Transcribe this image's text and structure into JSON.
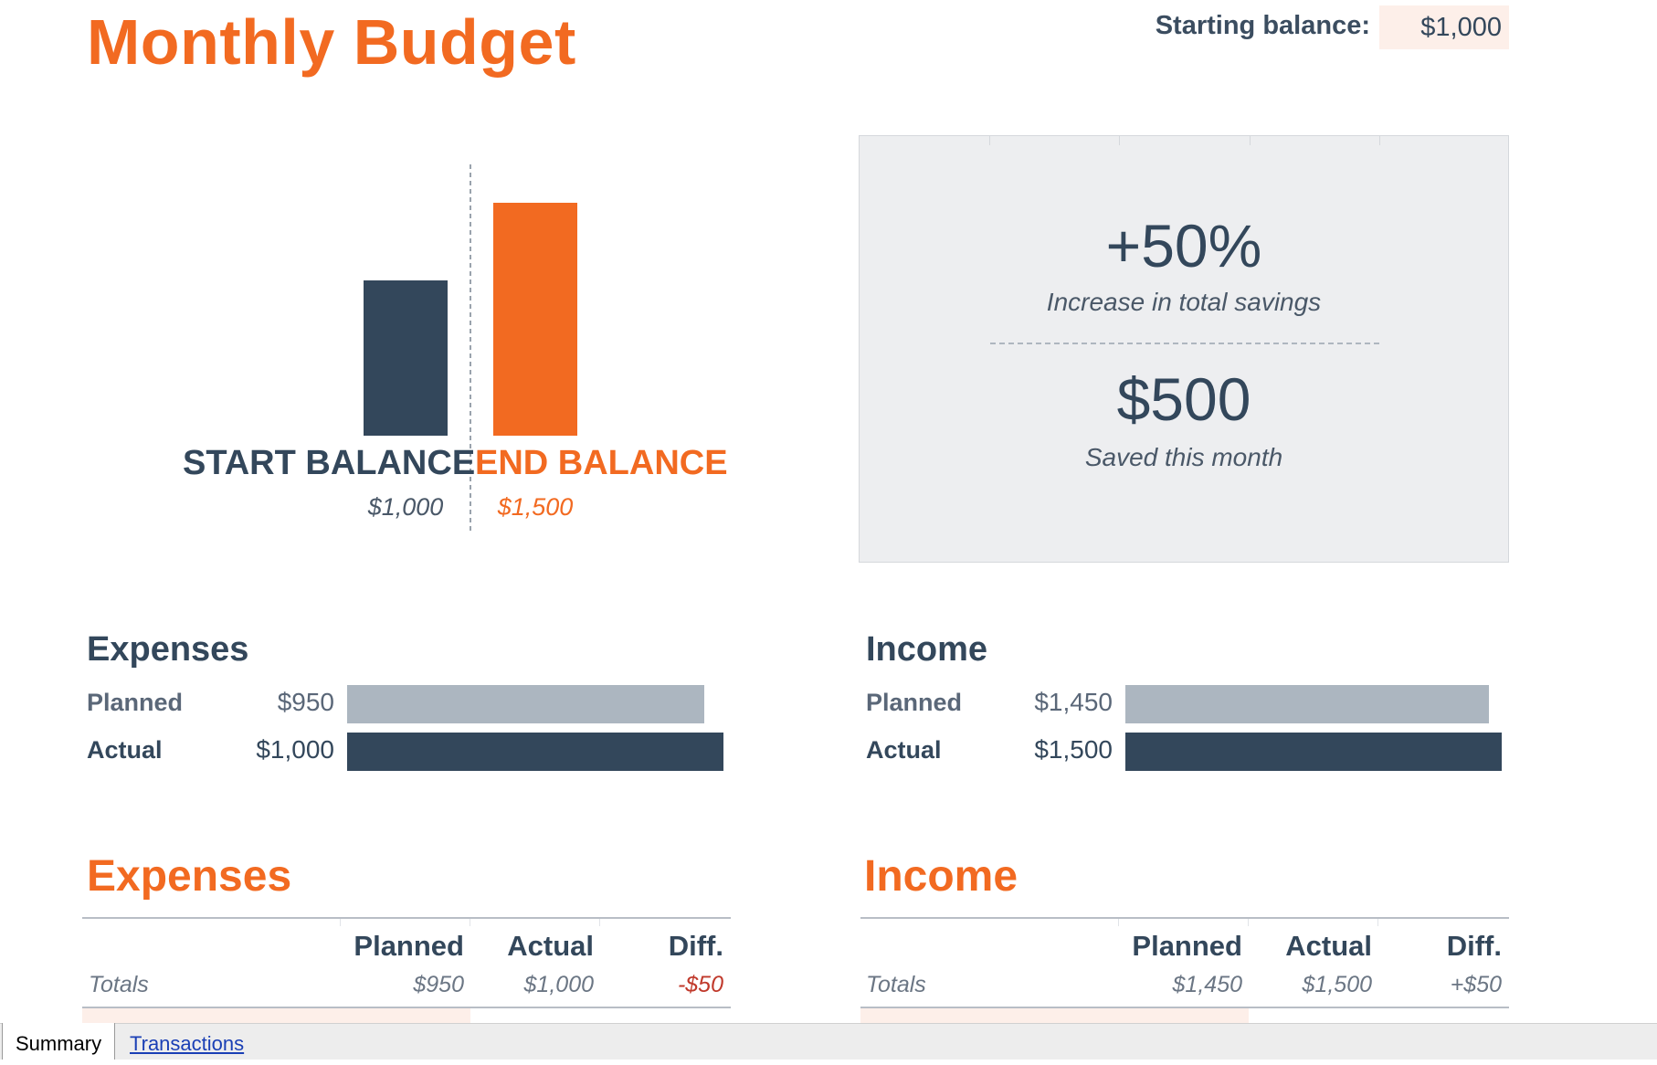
{
  "header": {
    "title": "Monthly Budget",
    "starting_balance_label": "Starting balance:",
    "starting_balance_value": "$1,000"
  },
  "balance_chart": {
    "start_label": "START BALANCE",
    "start_value": "$1,000",
    "end_label": "END BALANCE",
    "end_value": "$1,500",
    "start_amount": 1000,
    "end_amount": 1500,
    "colors": {
      "start": "#33475b",
      "end": "#f26a21"
    }
  },
  "summary_card": {
    "percent": "+50%",
    "percent_caption": "Increase in total savings",
    "amount": "$500",
    "amount_caption": "Saved this month"
  },
  "expenses_bars": {
    "title": "Expenses",
    "rows": [
      {
        "label": "Planned",
        "amount": "$950",
        "value": 950
      },
      {
        "label": "Actual",
        "amount": "$1,000",
        "value": 1000
      }
    ],
    "max": 1000
  },
  "income_bars": {
    "title": "Income",
    "rows": [
      {
        "label": "Planned",
        "amount": "$1,450",
        "value": 1450
      },
      {
        "label": "Actual",
        "amount": "$1,500",
        "value": 1500
      }
    ],
    "max": 1500
  },
  "expenses_table": {
    "title": "Expenses",
    "columns": [
      "Planned",
      "Actual",
      "Diff."
    ],
    "totals_label": "Totals",
    "totals": [
      "$950",
      "$1,000",
      "-$50"
    ]
  },
  "income_table": {
    "title": "Income",
    "columns": [
      "Planned",
      "Actual",
      "Diff."
    ],
    "totals_label": "Totals",
    "totals": [
      "$1,450",
      "$1,500",
      "+$50"
    ]
  },
  "sheet_tabs": {
    "active": "Summary",
    "other": "Transactions"
  },
  "colors": {
    "accent": "#f26a21",
    "navy": "#33475b",
    "planned_bar": "#acb6c0",
    "card_bg": "#edeef0",
    "negative": "#c0392b"
  }
}
